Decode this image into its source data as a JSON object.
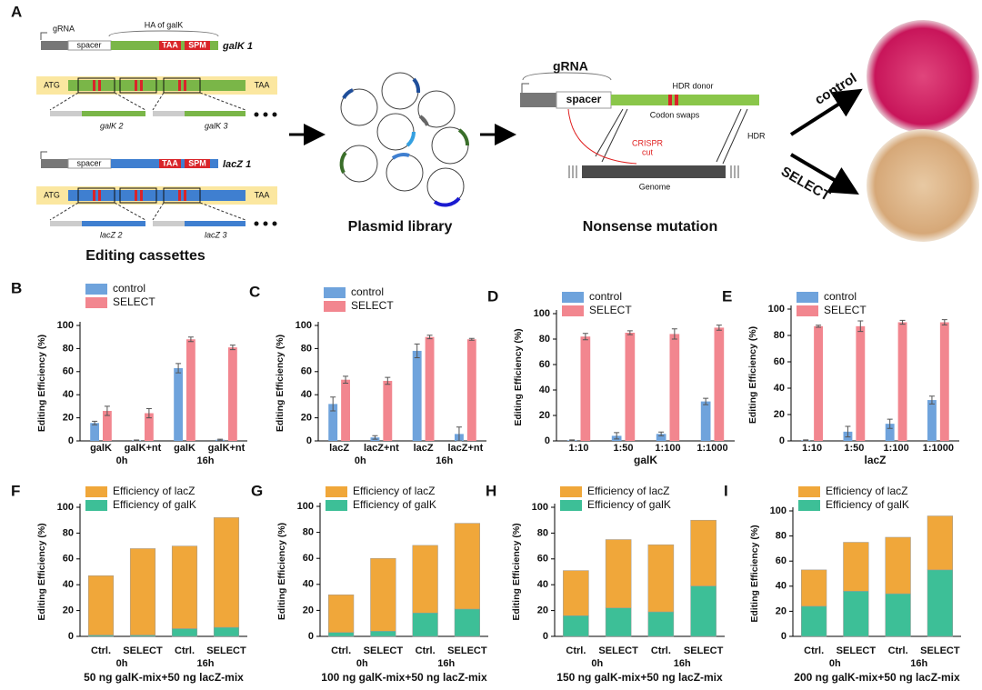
{
  "schematic": {
    "panel_label": "A",
    "grna_1": "gRNA",
    "ha": "HA of galK",
    "spacer_1": "spacer",
    "taa_1": "TAA",
    "spm_1": "SPM",
    "galk1": "galK 1",
    "atg_1": "ATG",
    "taa_2": "TAA",
    "galk2": "galK 2",
    "galk3": "galK 3",
    "spacer_2": "spacer",
    "taa_3": "TAA",
    "spm_2": "SPM",
    "lacz1": "lacZ 1",
    "atg_2": "ATG",
    "taa_4": "TAA",
    "lacz2": "lacZ 2",
    "lacz3": "lacZ 3",
    "cassettes": "Editing cassettes",
    "library": "Plasmid library",
    "grna_2": "gRNA",
    "spacer_3": "spacer",
    "hdr_donor": "HDR donor",
    "codon_swaps": "Codon swaps",
    "crispr": "CRISPR",
    "cut": "cut",
    "hdr": "HDR",
    "genome": "Genome",
    "nonsense": "Nonsense mutation",
    "control": "control",
    "select": "SELECT"
  },
  "chart_data": [
    {
      "type": "bar",
      "label": "B",
      "ylabel": "Editing Efficiency (%)",
      "categories": [
        "galK",
        "galK+nt",
        "galK",
        "galK+nt"
      ],
      "groups": [
        "0h",
        "16h"
      ],
      "ylim": [
        0,
        100
      ],
      "yticks": [
        0,
        20,
        40,
        60,
        80,
        100
      ],
      "series": [
        {
          "name": "control",
          "color": "#6fa3dc",
          "values": [
            15.5,
            0.5,
            63,
            1
          ],
          "errors": [
            1.5,
            0.3,
            4,
            0.5
          ]
        },
        {
          "name": "SELECT",
          "color": "#f2868f",
          "values": [
            26,
            24,
            88,
            81
          ],
          "errors": [
            4,
            4,
            2,
            2
          ]
        }
      ]
    },
    {
      "type": "bar",
      "label": "C",
      "ylabel": "Editing Efficiency (%)",
      "categories": [
        "lacZ",
        "lacZ+nt",
        "lacZ",
        "lacZ+nt"
      ],
      "groups": [
        "0h",
        "16h"
      ],
      "ylim": [
        0,
        100
      ],
      "yticks": [
        0,
        20,
        40,
        60,
        80,
        100
      ],
      "series": [
        {
          "name": "control",
          "color": "#6fa3dc",
          "values": [
            32,
            3,
            78,
            6
          ],
          "errors": [
            6,
            1.5,
            6,
            6
          ]
        },
        {
          "name": "SELECT",
          "color": "#f2868f",
          "values": [
            53,
            52,
            90,
            88
          ],
          "errors": [
            3,
            3,
            1.5,
            0.8
          ]
        }
      ]
    },
    {
      "type": "bar",
      "label": "D",
      "ylabel": "Editing Efficiency (%)",
      "xlabel": "galK",
      "categories": [
        "1:10",
        "1:50",
        "1:100",
        "1:1000"
      ],
      "ylim": [
        0,
        100
      ],
      "yticks": [
        0,
        20,
        40,
        60,
        80,
        100
      ],
      "series": [
        {
          "name": "control",
          "color": "#6fa3dc",
          "values": [
            0.5,
            4,
            5.5,
            31
          ],
          "errors": [
            0.3,
            2.5,
            1.5,
            2.5
          ]
        },
        {
          "name": "SELECT",
          "color": "#f2868f",
          "values": [
            82,
            85,
            84,
            89
          ],
          "errors": [
            2.5,
            1.5,
            4,
            2
          ]
        }
      ]
    },
    {
      "type": "bar",
      "label": "E",
      "ylabel": "Editing Efficiency (%)",
      "xlabel": "lacZ",
      "categories": [
        "1:10",
        "1:50",
        "1:100",
        "1:1000"
      ],
      "ylim": [
        0,
        100
      ],
      "yticks": [
        0,
        20,
        40,
        60,
        80,
        100
      ],
      "series": [
        {
          "name": "control",
          "color": "#6fa3dc",
          "values": [
            0.5,
            7,
            13,
            31
          ],
          "errors": [
            0.3,
            4,
            3.5,
            3
          ]
        },
        {
          "name": "SELECT",
          "color": "#f2868f",
          "values": [
            87,
            87,
            90,
            90
          ],
          "errors": [
            0.8,
            4,
            1.5,
            2
          ]
        }
      ]
    },
    {
      "type": "stacked_bar",
      "label": "F",
      "ylabel": "Editing Efficiency (%)",
      "xlabel": "50 ng galK-mix+50 ng lacZ-mix",
      "categories": [
        "Ctrl.",
        "SELECT",
        "Ctrl.",
        "SELECT"
      ],
      "groups": [
        "0h",
        "16h"
      ],
      "ylim": [
        0,
        100
      ],
      "yticks": [
        0,
        20,
        40,
        60,
        80,
        100
      ],
      "series": [
        {
          "name": "Efficiency of galK",
          "color": "#3dbf97",
          "values": [
            1,
            1,
            6,
            7
          ]
        },
        {
          "name": "Efficiency of lacZ",
          "color": "#f0a73a",
          "values": [
            46,
            67,
            64,
            85
          ]
        }
      ]
    },
    {
      "type": "stacked_bar",
      "label": "G",
      "ylabel": "Editing Efficiency (%)",
      "xlabel": "100 ng galK-mix+50 ng lacZ-mix",
      "categories": [
        "Ctrl.",
        "SELECT",
        "Ctrl.",
        "SELECT"
      ],
      "groups": [
        "0h",
        "16h"
      ],
      "ylim": [
        0,
        100
      ],
      "yticks": [
        0,
        20,
        40,
        60,
        80,
        100
      ],
      "series": [
        {
          "name": "Efficiency of galK",
          "color": "#3dbf97",
          "values": [
            3,
            4,
            18,
            21
          ]
        },
        {
          "name": "Efficiency of lacZ",
          "color": "#f0a73a",
          "values": [
            29,
            56,
            52,
            66
          ]
        }
      ]
    },
    {
      "type": "stacked_bar",
      "label": "H",
      "ylabel": "Editing Efficiency (%)",
      "xlabel": "150 ng galK-mix+50 ng lacZ-mix",
      "categories": [
        "Ctrl.",
        "SELECT",
        "Ctrl.",
        "SELECT"
      ],
      "groups": [
        "0h",
        "16h"
      ],
      "ylim": [
        0,
        100
      ],
      "yticks": [
        0,
        20,
        40,
        60,
        80,
        100
      ],
      "series": [
        {
          "name": "Efficiency of galK",
          "color": "#3dbf97",
          "values": [
            16,
            22,
            19,
            39
          ]
        },
        {
          "name": "Efficiency of lacZ",
          "color": "#f0a73a",
          "values": [
            35,
            53,
            52,
            51
          ]
        }
      ]
    },
    {
      "type": "stacked_bar",
      "label": "I",
      "ylabel": "Editing Efficiency (%)",
      "xlabel": "200 ng galK-mix+50 ng lacZ-mix",
      "categories": [
        "Ctrl.",
        "SELECT",
        "Ctrl.",
        "SELECT"
      ],
      "groups": [
        "0h",
        "16h"
      ],
      "ylim": [
        0,
        100
      ],
      "yticks": [
        0,
        20,
        40,
        60,
        80,
        100
      ],
      "series": [
        {
          "name": "Efficiency of galK",
          "color": "#3dbf97",
          "values": [
            24,
            36,
            34,
            53
          ]
        },
        {
          "name": "Efficiency of lacZ",
          "color": "#f0a73a",
          "values": [
            29,
            39,
            45,
            43
          ]
        }
      ]
    }
  ]
}
